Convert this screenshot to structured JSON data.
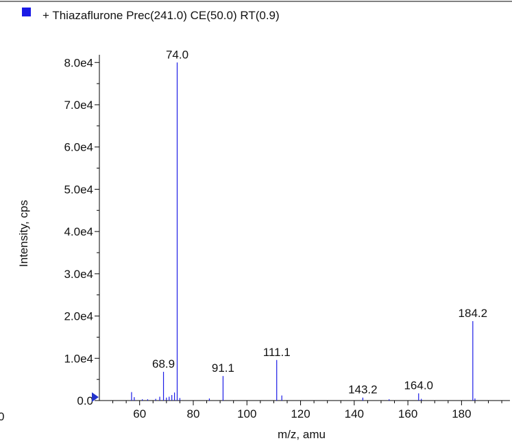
{
  "legend": {
    "label": "+ Thiazaflurone Prec(241.0) CE(50.0) RT(0.9)"
  },
  "colors": {
    "series": "#1a1ae6",
    "axis": "#000000",
    "marker": "#2233cc",
    "legend_swatch": "#1a1ae6"
  },
  "chart_data": {
    "type": "bar",
    "title": "+ Thiazaflurone Prec(241.0) CE(50.0) RT(0.9)",
    "xlabel": "m/z, amu",
    "ylabel": "Intensity, cps",
    "xlim": [
      45,
      196
    ],
    "ylim": [
      0,
      81500
    ],
    "x_ticks": [
      60,
      80,
      100,
      120,
      140,
      160,
      180
    ],
    "x_tick_labels": [
      "60",
      "80",
      "100",
      "120",
      "140",
      "160",
      "180"
    ],
    "y_ticks": [
      0,
      10000,
      20000,
      30000,
      40000,
      50000,
      60000,
      70000,
      80000
    ],
    "y_tick_labels": [
      "0.0",
      "1.0e4",
      "2.0e4",
      "3.0e4",
      "4.0e4",
      "5.0e4",
      "6.0e4",
      "7.0e4",
      "8.0e4"
    ],
    "left_edge_label": "0",
    "peaks": [
      {
        "mz": 57.0,
        "intensity": 2000
      },
      {
        "mz": 58.0,
        "intensity": 800
      },
      {
        "mz": 61.0,
        "intensity": 300
      },
      {
        "mz": 63.0,
        "intensity": 300
      },
      {
        "mz": 66.0,
        "intensity": 400
      },
      {
        "mz": 67.5,
        "intensity": 900
      },
      {
        "mz": 68.9,
        "intensity": 6800,
        "label": "68.9"
      },
      {
        "mz": 70.0,
        "intensity": 700
      },
      {
        "mz": 71.0,
        "intensity": 900
      },
      {
        "mz": 72.0,
        "intensity": 1300
      },
      {
        "mz": 73.0,
        "intensity": 1900
      },
      {
        "mz": 74.0,
        "intensity": 80000,
        "label": "74.0"
      },
      {
        "mz": 75.0,
        "intensity": 600
      },
      {
        "mz": 86.0,
        "intensity": 500
      },
      {
        "mz": 91.1,
        "intensity": 5800,
        "label": "91.1"
      },
      {
        "mz": 111.1,
        "intensity": 9600,
        "label": "111.1"
      },
      {
        "mz": 113.0,
        "intensity": 1200
      },
      {
        "mz": 143.2,
        "intensity": 700,
        "label": "143.2"
      },
      {
        "mz": 153.0,
        "intensity": 300
      },
      {
        "mz": 164.0,
        "intensity": 1700,
        "label": "164.0"
      },
      {
        "mz": 165.0,
        "intensity": 400
      },
      {
        "mz": 184.2,
        "intensity": 18800,
        "label": "184.2"
      },
      {
        "mz": 185.0,
        "intensity": 500
      }
    ]
  }
}
